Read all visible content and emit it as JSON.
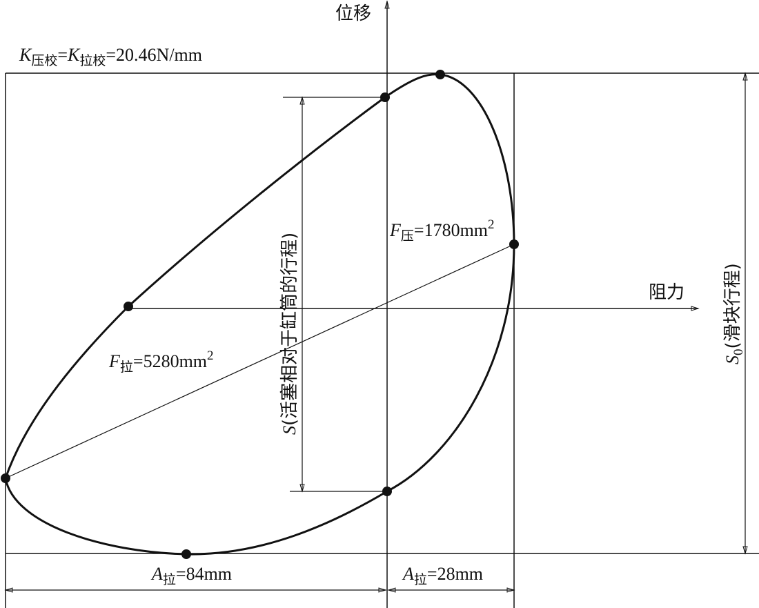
{
  "axes": {
    "y_label": "位移",
    "x_label": "阻力"
  },
  "annotations": {
    "stiffness": {
      "parts": [
        "K",
        "压校",
        "=",
        "K",
        "拉校",
        "=20.46N/mm"
      ]
    },
    "area_press": {
      "parts": [
        "F",
        "压",
        "=1780mm",
        "2"
      ]
    },
    "area_pull": {
      "parts": [
        "F",
        "拉",
        "=5280mm",
        "2"
      ]
    },
    "piston_stroke": {
      "parts": [
        "S",
        "(活塞相对于缸筒的行程)"
      ]
    },
    "slider_stroke": {
      "parts": [
        "S",
        "0",
        "(滑块行程)"
      ]
    },
    "amplitude_pull": {
      "parts": [
        "A",
        "拉",
        "=84mm"
      ]
    },
    "amplitude_press": {
      "parts": [
        "A",
        "拉",
        "=28mm"
      ]
    }
  }
}
